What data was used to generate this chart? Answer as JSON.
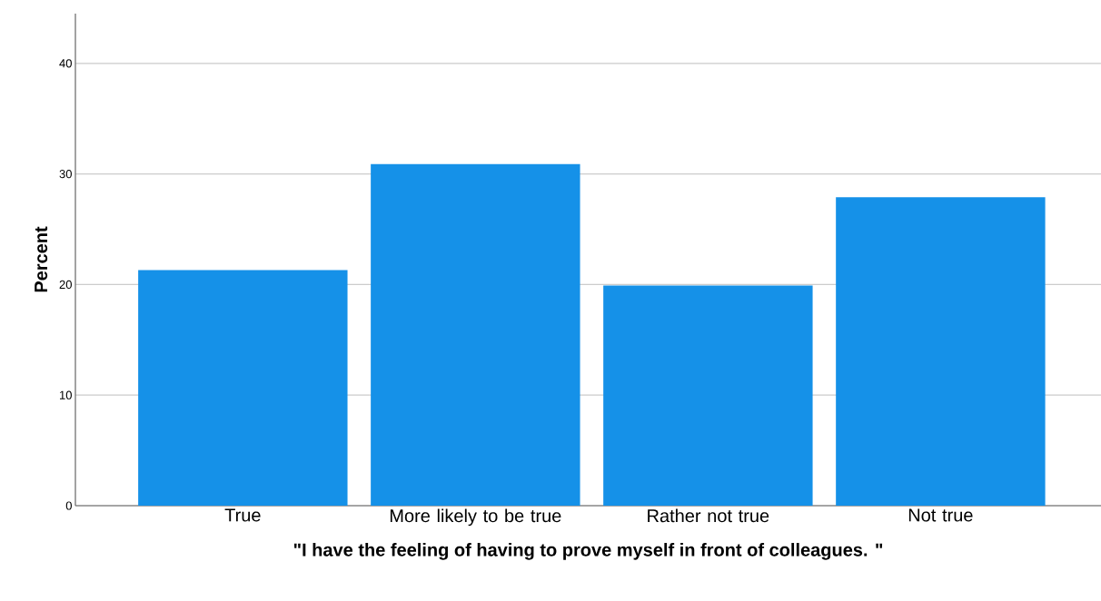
{
  "chart_data": {
    "type": "bar",
    "xlabel": "\"I have the feeling of having to prove myself in front of colleagues. \"",
    "ylabel": "Percent",
    "categories": [
      "True",
      "More likely to be true",
      "Rather not true",
      "Not true"
    ],
    "values": [
      21.3,
      30.9,
      19.9,
      27.9
    ],
    "color": "#1591e8",
    "ylim": [
      0,
      44.5
    ],
    "yticks": [
      0,
      10,
      20,
      30,
      40
    ],
    "grid": "y"
  }
}
